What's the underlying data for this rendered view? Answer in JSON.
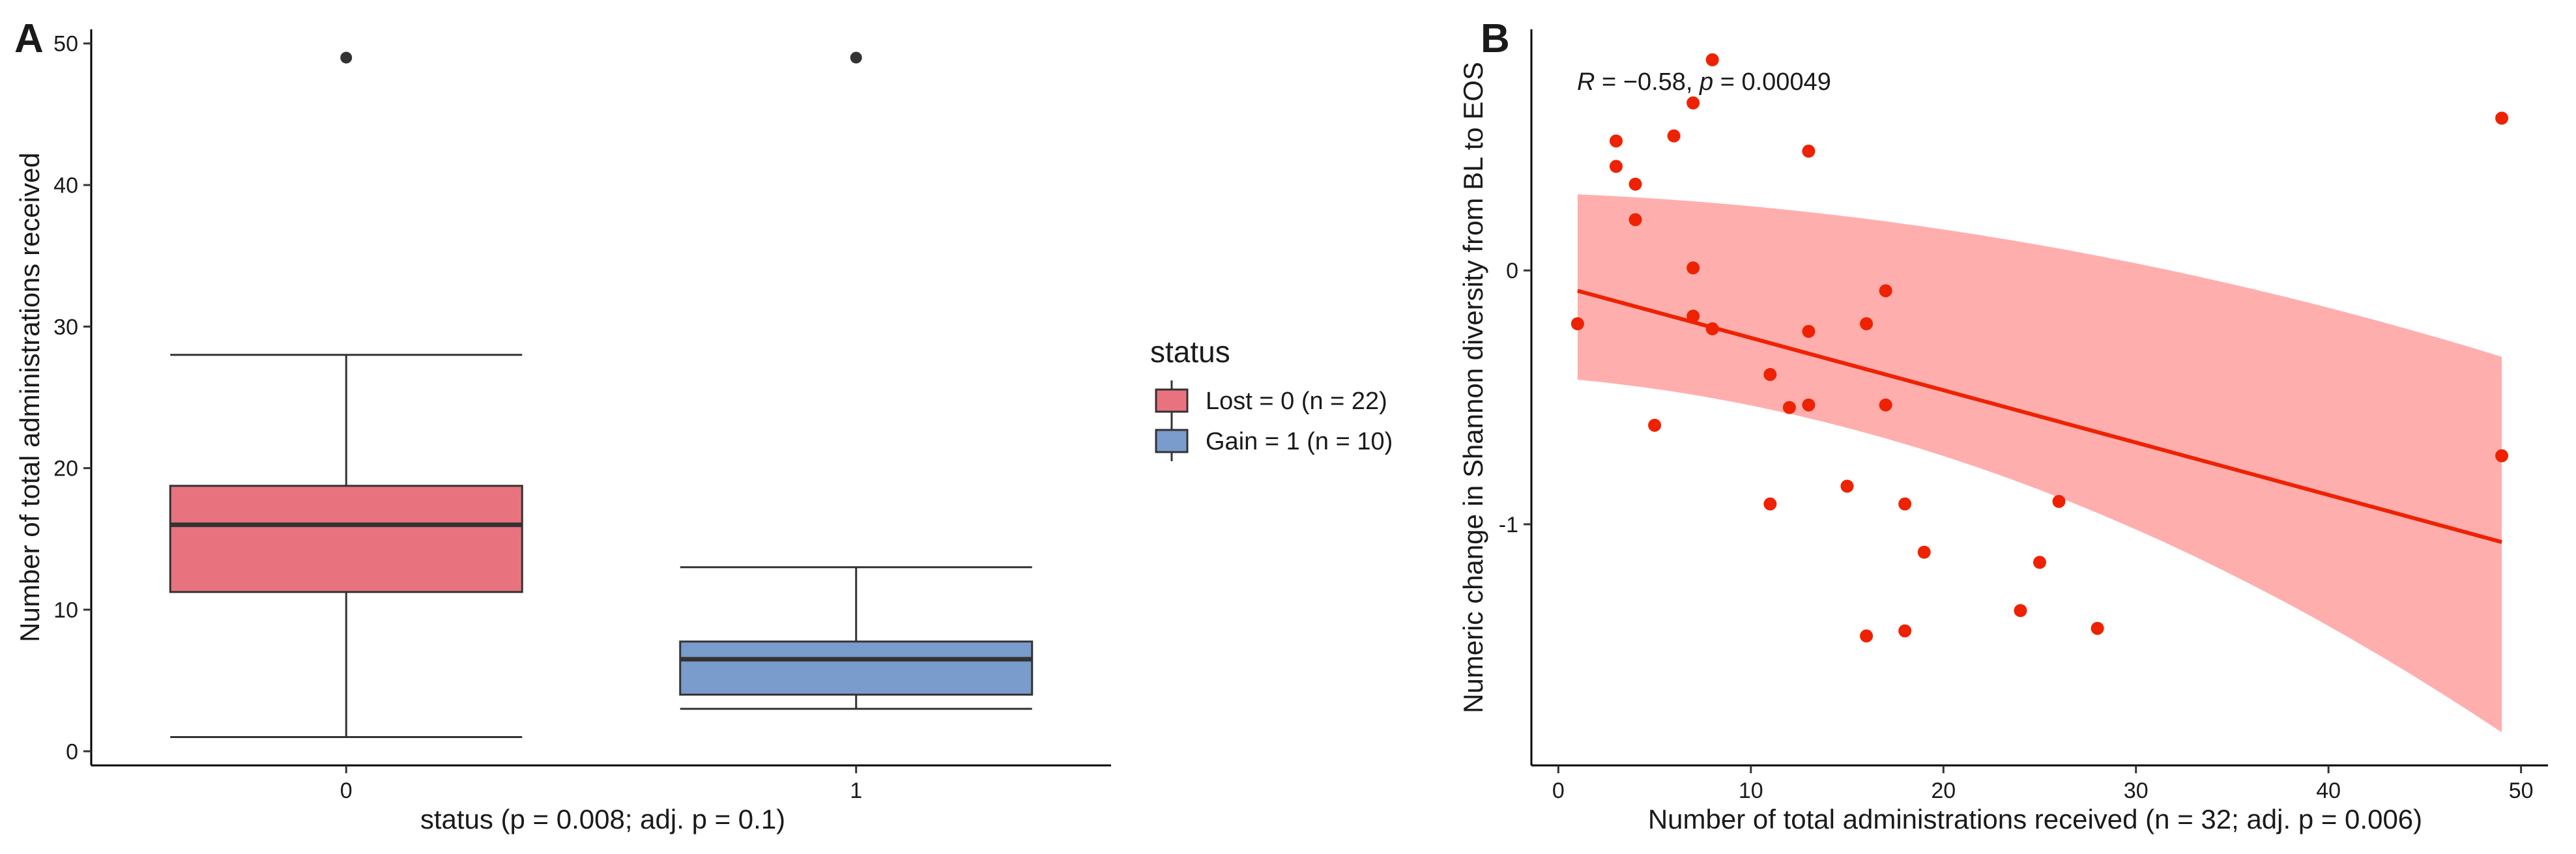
{
  "chart_data": [
    {
      "panel": "A",
      "type": "box",
      "xlabel": "status (p = 0.008; adj. p = 0.1)",
      "ylabel": "Number of total administrations received",
      "categories": [
        "0",
        "1"
      ],
      "ylim": [
        -1,
        51
      ],
      "yticks": [
        0,
        10,
        20,
        30,
        40,
        50
      ],
      "grid": false,
      "boxes": [
        {
          "category": "0",
          "min": 1,
          "q1": 11.25,
          "median": 16,
          "q3": 18.75,
          "max": 28,
          "outliers": [
            49
          ],
          "color": "#e8737e"
        },
        {
          "category": "1",
          "min": 3,
          "q1": 4,
          "median": 6.5,
          "q3": 7.75,
          "max": 13,
          "outliers": [
            49
          ],
          "color": "#7a9ccc"
        }
      ],
      "legend": {
        "title": "status",
        "entries": [
          {
            "label": "Lost = 0 (n = 22)",
            "color": "#e8737e"
          },
          {
            "label": "Gain = 1 (n = 10)",
            "color": "#7a9ccc"
          }
        ]
      }
    },
    {
      "panel": "B",
      "type": "scatter",
      "xlabel": "Number of total administrations received (n = 32; adj. p = 0.006)",
      "ylabel": "Numeric change in Shannon diversity from BL to EOS",
      "xlim": [
        -1.4,
        51.4
      ],
      "ylim": [
        -1.95,
        0.95
      ],
      "xticks": [
        0,
        10,
        20,
        30,
        40,
        50
      ],
      "yticks": [
        -1,
        0
      ],
      "grid": false,
      "annotation": {
        "R": "R",
        "rest": " = −0.58, ",
        "p": "p",
        "value": " = 0.00049"
      },
      "point_color": "#ee2200",
      "fit": {
        "x0": 1,
        "y0": -0.08,
        "x1": 49,
        "y1": -1.07,
        "ci_upper_start": 0.3,
        "ci_upper_end": -0.34,
        "ci_lower_start": -0.43,
        "ci_lower_end": -1.82,
        "line_color": "#ee2200",
        "band_color": "#ffaaaa"
      },
      "points": [
        [
          1,
          -0.21
        ],
        [
          3,
          0.51
        ],
        [
          3,
          0.41
        ],
        [
          4,
          0.34
        ],
        [
          4,
          0.2
        ],
        [
          5,
          -0.61
        ],
        [
          6,
          0.53
        ],
        [
          7,
          0.66
        ],
        [
          7,
          0.01
        ],
        [
          7,
          -0.18
        ],
        [
          8,
          0.83
        ],
        [
          8,
          -0.23
        ],
        [
          11,
          -0.41
        ],
        [
          11,
          -0.92
        ],
        [
          12,
          -0.54
        ],
        [
          13,
          0.47
        ],
        [
          13,
          -0.24
        ],
        [
          13,
          -0.53
        ],
        [
          15,
          -0.85
        ],
        [
          16,
          -0.21
        ],
        [
          16,
          -1.44
        ],
        [
          17,
          -0.08
        ],
        [
          17,
          -0.53
        ],
        [
          18,
          -0.92
        ],
        [
          18,
          -1.42
        ],
        [
          19,
          -1.11
        ],
        [
          24,
          -1.34
        ],
        [
          25,
          -1.15
        ],
        [
          26,
          -0.91
        ],
        [
          28,
          -1.41
        ],
        [
          49,
          0.6
        ],
        [
          49,
          -0.73
        ]
      ]
    }
  ]
}
